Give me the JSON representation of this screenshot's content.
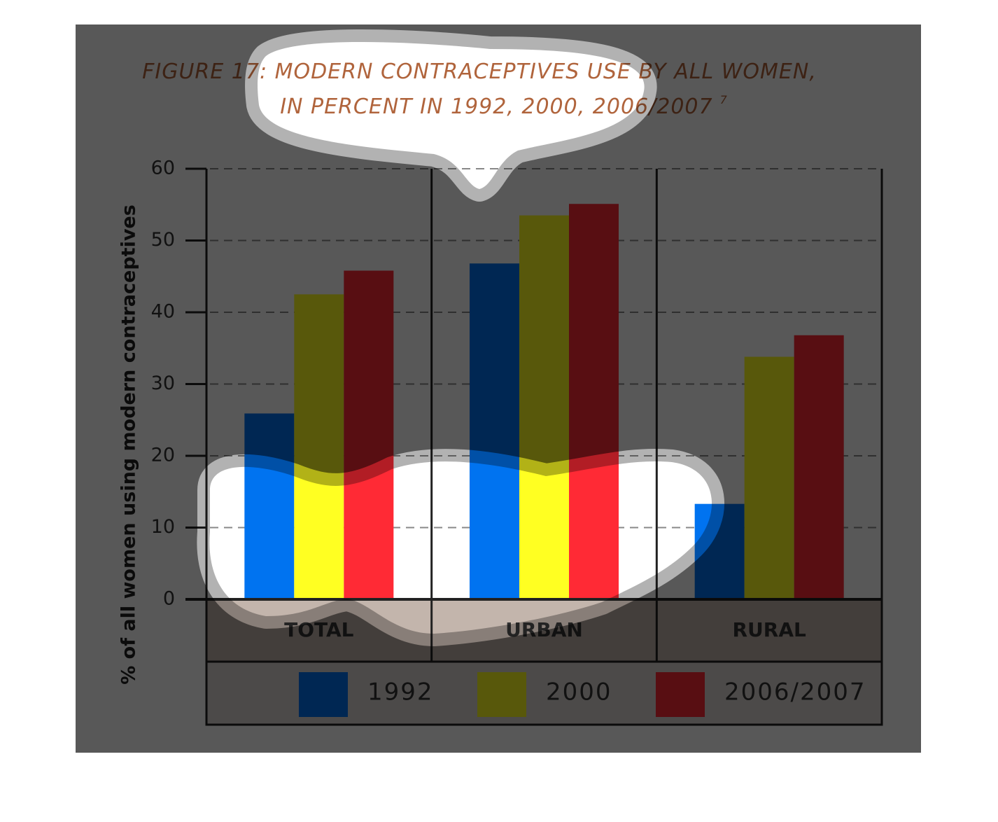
{
  "chart_data": {
    "type": "bar",
    "title": [
      "FIGURE 17: MODERN CONTRACEPTIVES USE BY ALL WOMEN,",
      "IN PERCENT IN 1992, 2000, 2006/2007"
    ],
    "footnote_mark": "7",
    "y_label": "% of all women using modern contraceptives",
    "categories": [
      "TOTAL",
      "URBAN",
      "RURAL"
    ],
    "series": [
      {
        "name": "1992",
        "color": "#0073f0",
        "values": [
          25.9,
          46.8,
          13.3
        ]
      },
      {
        "name": "2000",
        "color": "#ffff22",
        "values": [
          42.5,
          53.5,
          33.8
        ]
      },
      {
        "name": "2006/2007",
        "color": "#ff2a35",
        "values": [
          45.8,
          55.1,
          36.8
        ]
      }
    ],
    "ylim": [
      0,
      60
    ],
    "yticks": [
      0,
      10,
      20,
      30,
      40,
      50,
      60
    ],
    "grid": true,
    "legend": "bottom"
  }
}
